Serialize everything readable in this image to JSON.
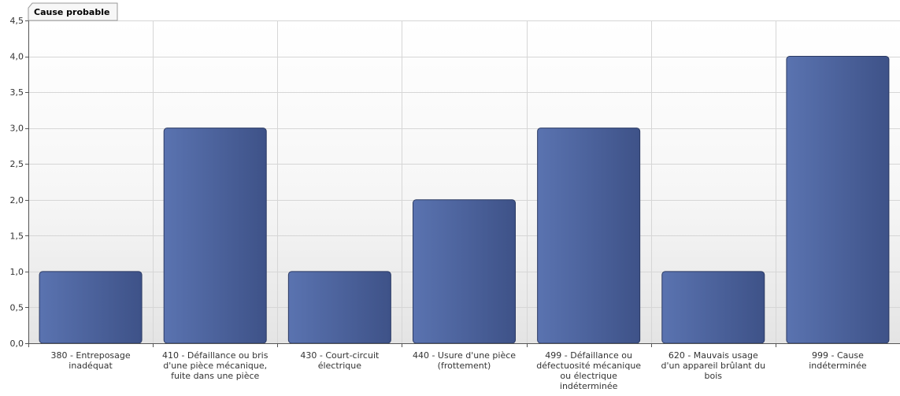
{
  "chart_data": {
    "type": "bar",
    "title": "Cause probable",
    "xlabel": "",
    "ylabel": "",
    "ylim": [
      0,
      4.5
    ],
    "y_ticks": [
      "0,0",
      "0,5",
      "1,0",
      "1,5",
      "2,0",
      "2,5",
      "3,0",
      "3,5",
      "4,0",
      "4,5"
    ],
    "grid": true,
    "legend": "none",
    "categories": [
      [
        "380 - Entreposage",
        "inadéquat"
      ],
      [
        "410 - Défaillance ou bris",
        "d'une pièce mécanique,",
        "fuite dans une pièce"
      ],
      [
        "430 - Court-circuit",
        "électrique"
      ],
      [
        "440 - Usure d'une pièce",
        "(frottement)"
      ],
      [
        "499 - Défaillance ou",
        "défectuosité mécanique",
        "ou électrique",
        "indéterminée"
      ],
      [
        "620 - Mauvais usage",
        "d'un appareil brûlant du",
        "bois"
      ],
      [
        "999 - Cause",
        "indéterminée"
      ]
    ],
    "values": [
      1,
      3,
      1,
      2,
      3,
      1,
      4
    ],
    "colors": {
      "bar_light": "#5a73b0",
      "bar_dark": "#3e5288",
      "bar_stroke": "#2b3a63",
      "grid": "#d6d6d6",
      "axis": "#555555",
      "plot_top": "#ffffff",
      "plot_bottom": "#e4e4e4"
    }
  }
}
